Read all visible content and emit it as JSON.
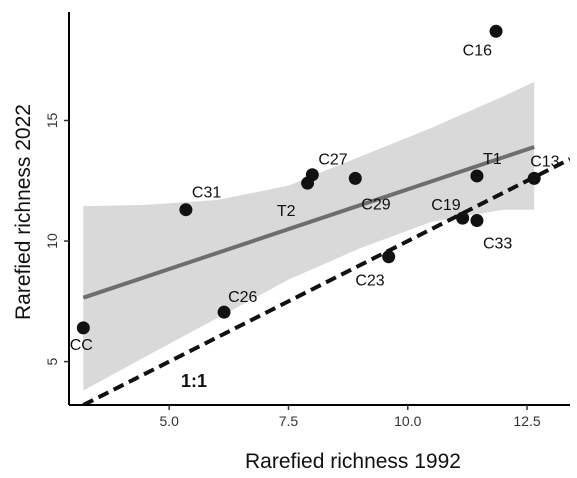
{
  "chart_data": {
    "type": "scatter",
    "title": "",
    "xlabel": "Rarefied richness 1992",
    "ylabel": "Rarefied richness 2022",
    "xlim": [
      2.9,
      13.4
    ],
    "ylim": [
      3.2,
      19.5
    ],
    "xticks": [
      5.0,
      7.5,
      10.0,
      12.5
    ],
    "xtick_labels": [
      "5.0",
      "7.5",
      "10.0",
      "12.5"
    ],
    "yticks": [
      5,
      10,
      15
    ],
    "ytick_labels": [
      "5",
      "10",
      "15"
    ],
    "grid": false,
    "legend": "none",
    "points": [
      {
        "label": "CC",
        "x": 3.2,
        "y": 6.4
      },
      {
        "label": "C26",
        "x": 6.15,
        "y": 7.05
      },
      {
        "label": "C31",
        "x": 5.35,
        "y": 11.3
      },
      {
        "label": "T2",
        "x": 7.9,
        "y": 12.4
      },
      {
        "label": "C27",
        "x": 8.0,
        "y": 12.75
      },
      {
        "label": "C29",
        "x": 8.9,
        "y": 12.6
      },
      {
        "label": "C23",
        "x": 9.6,
        "y": 9.35
      },
      {
        "label": "C19",
        "x": 11.15,
        "y": 10.95
      },
      {
        "label": "C33",
        "x": 11.45,
        "y": 10.85
      },
      {
        "label": "T1",
        "x": 11.45,
        "y": 12.7
      },
      {
        "label": "C13",
        "x": 12.65,
        "y": 12.6
      },
      {
        "label": "C16",
        "x": 11.85,
        "y": 18.7
      }
    ],
    "regression": {
      "x": [
        3.2,
        12.65
      ],
      "y": [
        7.65,
        13.9
      ]
    },
    "confidence_band": {
      "x": [
        3.2,
        4.5,
        6.0,
        7.5,
        9.0,
        10.5,
        12.0,
        12.65
      ],
      "upper": [
        11.45,
        11.5,
        11.7,
        12.3,
        13.5,
        14.7,
        16.0,
        16.6
      ],
      "lower": [
        3.8,
        5.2,
        6.8,
        8.4,
        9.7,
        10.8,
        11.3,
        11.3
      ]
    },
    "reference_line": {
      "label": "1:1",
      "x": [
        3.2,
        13.4
      ],
      "y": [
        3.2,
        13.4
      ]
    },
    "colors": {
      "points": "#111111",
      "regression": "#6e6e6e",
      "band": "#d9d9d9",
      "reference": "#111111"
    }
  }
}
